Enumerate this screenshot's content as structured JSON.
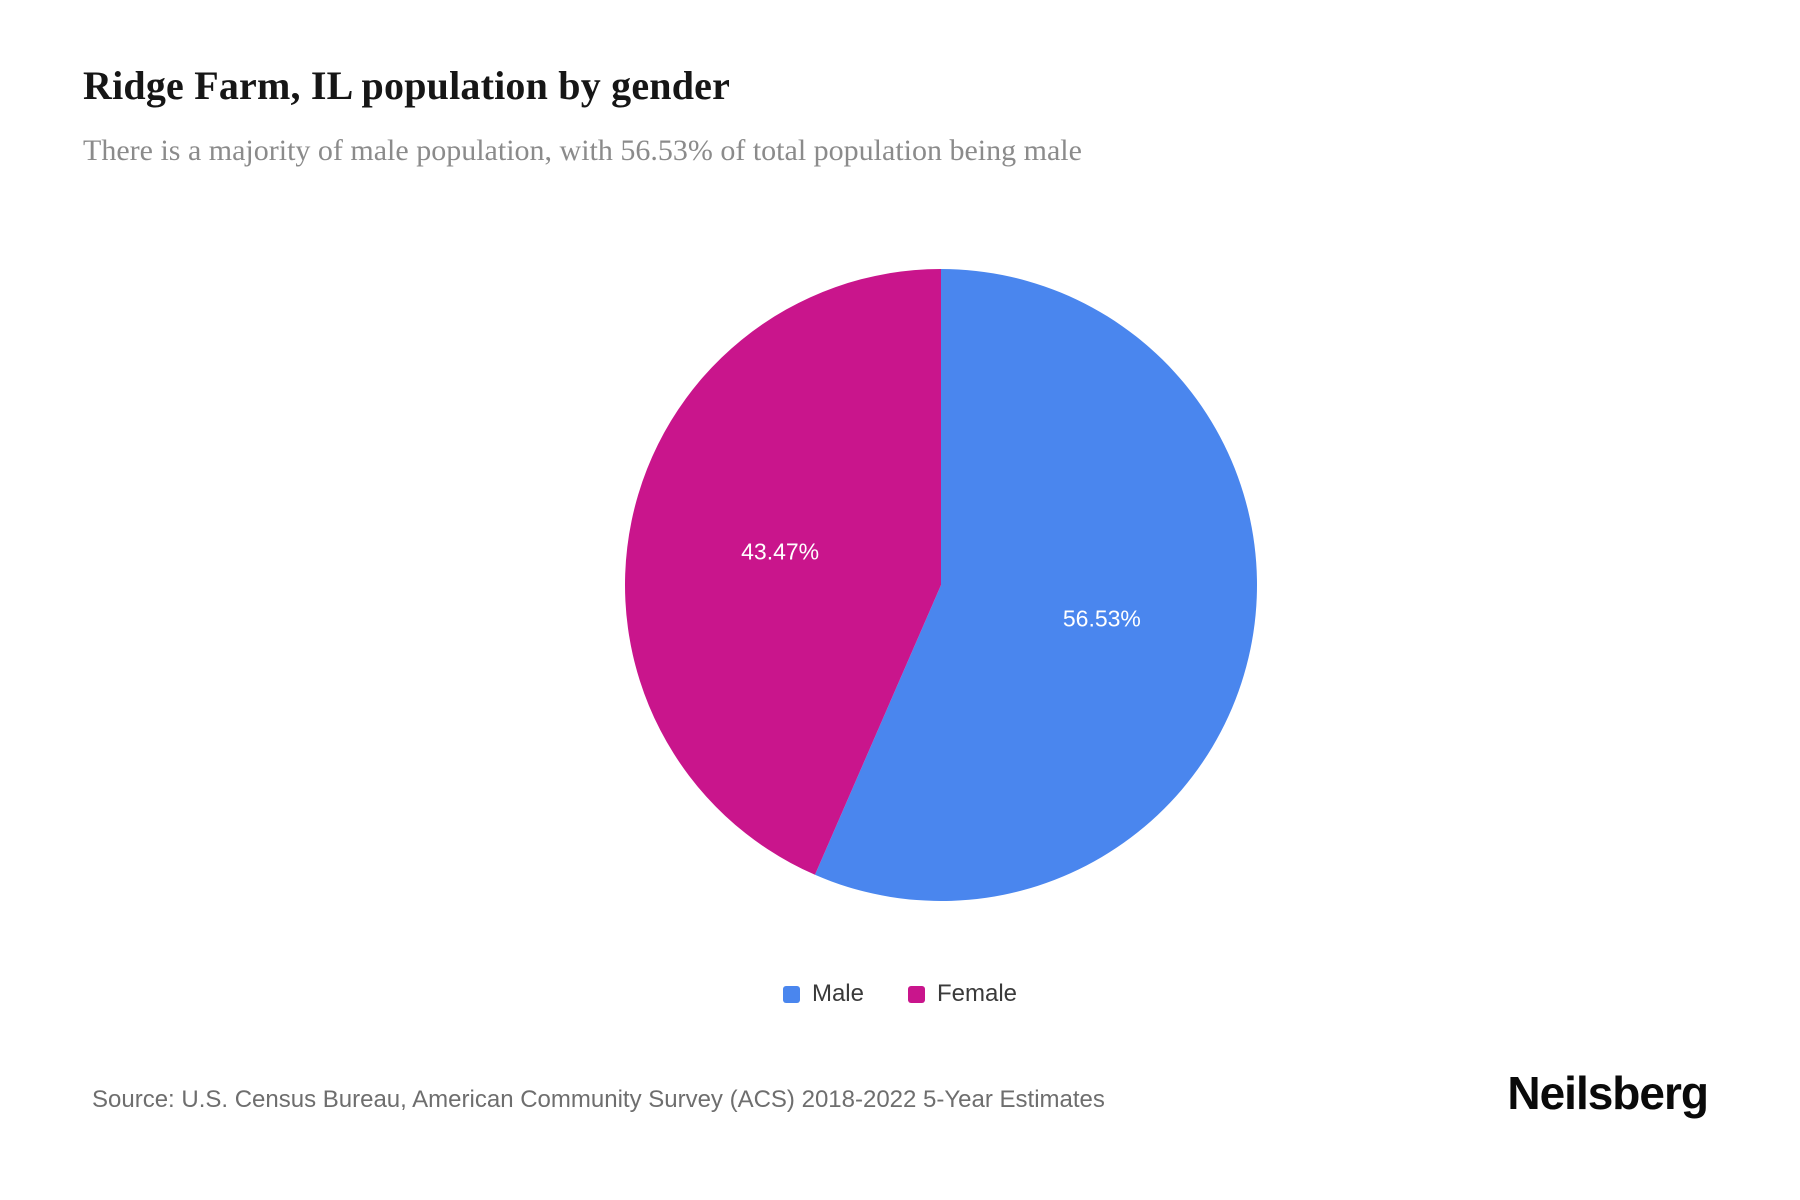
{
  "page": {
    "title": "Ridge Farm, IL population by gender",
    "subtitle": "There is a majority of male population, with 56.53% of total population being male",
    "source": "Source: U.S. Census Bureau, American Community Survey (ACS) 2018-2022 5-Year Estimates",
    "brand": "Neilsberg"
  },
  "chart_data": {
    "type": "pie",
    "title": "Ridge Farm, IL population by gender",
    "categories": [
      "Male",
      "Female"
    ],
    "values": [
      56.53,
      43.47
    ],
    "slice_labels": [
      "56.53%",
      "43.47%"
    ],
    "colors": [
      "#4a86ee",
      "#c9158c"
    ],
    "start_angle_deg": 0,
    "direction": "clockwise",
    "legend_position": "bottom",
    "legend": [
      {
        "label": "Male",
        "color": "#4a86ee"
      },
      {
        "label": "Female",
        "color": "#c9158c"
      }
    ]
  }
}
